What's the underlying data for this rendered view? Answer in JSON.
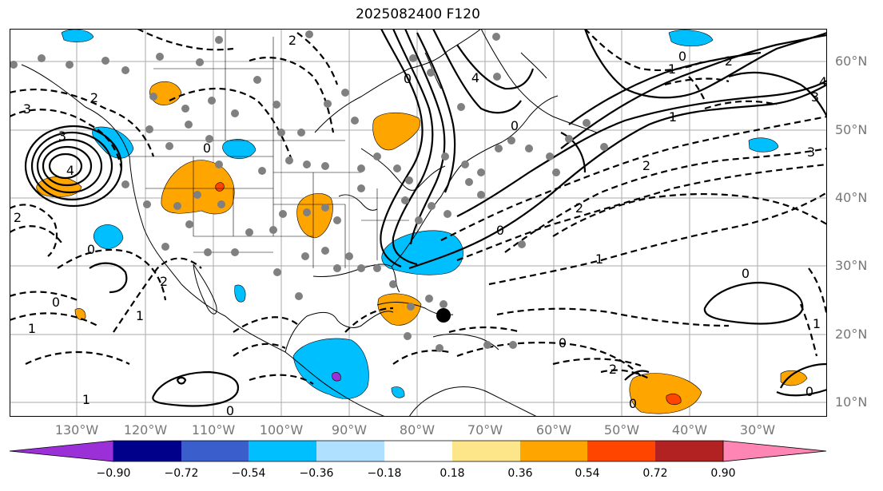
{
  "title": "2025082400 F120",
  "lon_labels": [
    "130°W",
    "120°W",
    "110°W",
    "100°W",
    "90°W",
    "80°W",
    "70°W",
    "60°W",
    "50°W",
    "40°W",
    "30°W"
  ],
  "lat_labels": [
    "60°N",
    "50°N",
    "40°N",
    "30°N",
    "20°N",
    "10°N"
  ],
  "colorbar": {
    "ticks": [
      "−0.90",
      "−0.72",
      "−0.54",
      "−0.36",
      "−0.18",
      "0.18",
      "0.36",
      "0.54",
      "0.72",
      "0.90"
    ],
    "colors": {
      "under": "#9b30d9",
      "bins": [
        "#00008b",
        "#3a5fcd",
        "#00bfff",
        "#b0e0ff",
        "#ffffff",
        "#fde68a",
        "#ffa500",
        "#ff4500",
        "#b22222"
      ],
      "over": "#ff85b4"
    }
  },
  "map": {
    "contour_labels": [
      {
        "text": "3"
      },
      {
        "text": "4"
      },
      {
        "text": "3"
      },
      {
        "text": "2"
      },
      {
        "text": "2"
      },
      {
        "text": "0"
      },
      {
        "text": "2"
      },
      {
        "text": "4"
      },
      {
        "text": "0"
      },
      {
        "text": "1"
      },
      {
        "text": "2"
      },
      {
        "text": "3"
      },
      {
        "text": "4"
      },
      {
        "text": "0"
      },
      {
        "text": "0"
      },
      {
        "text": "1"
      },
      {
        "text": "2"
      },
      {
        "text": "3"
      },
      {
        "text": "2"
      },
      {
        "text": "1"
      },
      {
        "text": "0"
      },
      {
        "text": "1"
      },
      {
        "text": "0"
      },
      {
        "text": "0"
      },
      {
        "text": "2"
      },
      {
        "text": "0"
      },
      {
        "text": "0"
      },
      {
        "text": "1"
      },
      {
        "text": "0"
      },
      {
        "text": "1"
      },
      {
        "text": "0"
      },
      {
        "text": "0"
      },
      {
        "text": "2"
      },
      {
        "text": "1"
      }
    ],
    "storm_marker": "filled-circle"
  }
}
